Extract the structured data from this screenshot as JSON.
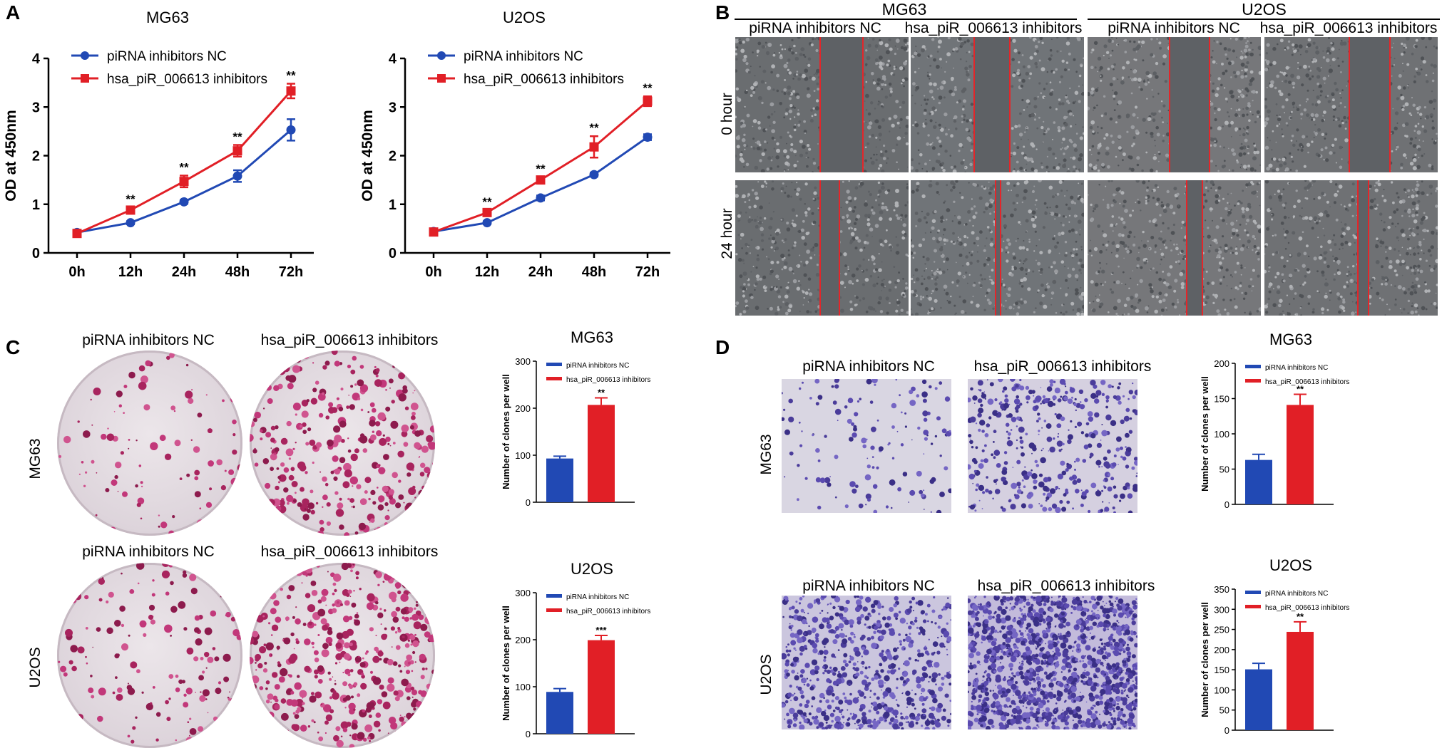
{
  "panels": {
    "A": "A",
    "B": "B",
    "C": "C",
    "D": "D"
  },
  "colors": {
    "nc": "#2149b4",
    "inh": "#e11f26"
  },
  "chart_data": [
    {
      "id": "A-MG63",
      "type": "line",
      "title": "MG63",
      "xlabel": "",
      "ylabel": "OD at 450nm",
      "categories": [
        "0h",
        "12h",
        "24h",
        "48h",
        "72h"
      ],
      "ylim": [
        0,
        4
      ],
      "yticks": [
        0,
        1,
        2,
        3,
        4
      ],
      "series": [
        {
          "name": "piRNA inhibitors NC",
          "values": [
            0.42,
            0.62,
            1.05,
            1.58,
            2.53
          ],
          "errors": [
            0.04,
            0.03,
            0.04,
            0.12,
            0.22
          ],
          "color": "#2149b4",
          "marker": "circle"
        },
        {
          "name": "hsa_piR_006613 inhibitors",
          "values": [
            0.4,
            0.88,
            1.47,
            2.1,
            3.33
          ],
          "errors": [
            0.04,
            0.06,
            0.12,
            0.12,
            0.15
          ],
          "color": "#e11f26",
          "marker": "square"
        }
      ],
      "annotations": [
        "",
        "**",
        "**",
        "**",
        "**"
      ]
    },
    {
      "id": "A-U2OS",
      "type": "line",
      "title": "U2OS",
      "xlabel": "",
      "ylabel": "OD at 450nm",
      "categories": [
        "0h",
        "12h",
        "24h",
        "48h",
        "72h"
      ],
      "ylim": [
        0,
        4
      ],
      "yticks": [
        0,
        1,
        2,
        3,
        4
      ],
      "series": [
        {
          "name": "piRNA inhibitors NC",
          "values": [
            0.44,
            0.62,
            1.13,
            1.61,
            2.38
          ],
          "errors": [
            0.03,
            0.03,
            0.05,
            0.04,
            0.06
          ],
          "color": "#2149b4",
          "marker": "circle"
        },
        {
          "name": "hsa_piR_006613 inhibitors",
          "values": [
            0.43,
            0.83,
            1.5,
            2.18,
            3.12
          ],
          "errors": [
            0.03,
            0.05,
            0.06,
            0.22,
            0.1
          ],
          "color": "#e11f26",
          "marker": "square"
        }
      ],
      "annotations": [
        "",
        "**",
        "**",
        "**",
        "**"
      ]
    },
    {
      "id": "C-MG63",
      "type": "bar",
      "title": "MG63",
      "xlabel": "",
      "ylabel": "Number of clones per well",
      "categories": [
        "piRNA inhibitors NC",
        "hsa_piR_006613 inhibitors"
      ],
      "ylim": [
        0,
        300
      ],
      "yticks": [
        0,
        100,
        200,
        300
      ],
      "values": [
        93,
        207
      ],
      "errors": [
        5,
        15
      ],
      "annotation": "**"
    },
    {
      "id": "C-U2OS",
      "type": "bar",
      "title": "U2OS",
      "xlabel": "",
      "ylabel": "Number of clones per well",
      "categories": [
        "piRNA inhibitors NC",
        "hsa_piR_006613 inhibitors"
      ],
      "ylim": [
        0,
        300
      ],
      "yticks": [
        0,
        100,
        200,
        300
      ],
      "values": [
        89,
        199
      ],
      "errors": [
        7,
        10
      ],
      "annotation": "***"
    },
    {
      "id": "D-MG63",
      "type": "bar",
      "title": "MG63",
      "xlabel": "",
      "ylabel": "Number of clones per well",
      "categories": [
        "piRNA inhibitors NC",
        "hsa_piR_006613 inhibitors"
      ],
      "ylim": [
        0,
        200
      ],
      "yticks": [
        0,
        50,
        100,
        150,
        200
      ],
      "values": [
        63,
        141
      ],
      "errors": [
        8,
        15
      ],
      "annotation": "**"
    },
    {
      "id": "D-U2OS",
      "type": "bar",
      "title": "U2OS",
      "xlabel": "",
      "ylabel": "Number of clones per well",
      "categories": [
        "piRNA inhibitors NC",
        "hsa_piR_006613 inhibitors"
      ],
      "ylim": [
        0,
        350
      ],
      "yticks": [
        0,
        50,
        100,
        150,
        200,
        250,
        300,
        350
      ],
      "values": [
        151,
        244
      ],
      "errors": [
        15,
        25
      ],
      "annotation": "**"
    }
  ],
  "panelB": {
    "groups": [
      "MG63",
      "U2OS"
    ],
    "columns": [
      "piRNA inhibitors NC",
      "hsa_piR_006613 inhibitors",
      "piRNA inhibitors NC",
      "hsa_piR_006613 inhibitors"
    ],
    "rows": [
      "0 hour",
      "24 hour"
    ]
  },
  "panelC": {
    "rows": [
      {
        "cell_line": "MG63",
        "columns": [
          "piRNA inhibitors NC",
          "hsa_piR_006613 inhibitors"
        ]
      },
      {
        "cell_line": "U2OS",
        "columns": [
          "piRNA inhibitors NC",
          "hsa_piR_006613 inhibitors"
        ]
      }
    ]
  },
  "panelD": {
    "rows": [
      {
        "cell_line": "MG63",
        "columns": [
          "piRNA inhibitors NC",
          "hsa_piR_006613 inhibitors"
        ]
      },
      {
        "cell_line": "U2OS",
        "columns": [
          "piRNA inhibitors NC",
          "hsa_piR_006613 inhibitors"
        ]
      }
    ]
  }
}
